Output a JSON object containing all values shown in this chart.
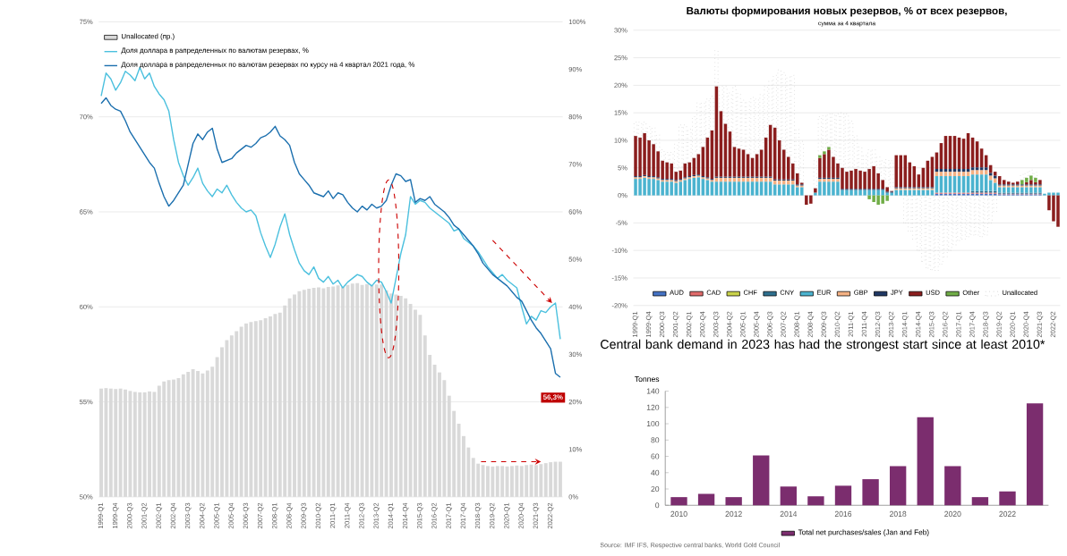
{
  "chart_data": [
    {
      "type": "bar",
      "categories": [
        "1999-Q1",
        null,
        null,
        "1999-Q4",
        null,
        null,
        "2000-Q3",
        null,
        null,
        "2001-Q2",
        null,
        null,
        "2002-Q1",
        null,
        null,
        "2002-Q4",
        null,
        null,
        "2003-Q3",
        null,
        null,
        "2004-Q2",
        null,
        null,
        "2005-Q1",
        null,
        null,
        "2005-Q4",
        null,
        null,
        "2006-Q3",
        null,
        null,
        "2007-Q2",
        null,
        null,
        "2008-Q1",
        null,
        null,
        "2008-Q4",
        null,
        null,
        "2009-Q3",
        null,
        null,
        "2010-Q2",
        null,
        null,
        "2011-Q1",
        null,
        null,
        "2011-Q4",
        null,
        null,
        "2012-Q3",
        null,
        null,
        "2013-Q2",
        null,
        null,
        "2014-Q1",
        null,
        null,
        "2014-Q4",
        null,
        null,
        "2015-Q3",
        null,
        null,
        "2016-Q2",
        null,
        null,
        "2017-Q1",
        null,
        null,
        "2017-Q4",
        null,
        null,
        "2018-Q3",
        null,
        null,
        "2019-Q2",
        null,
        null,
        "2020-Q1",
        null,
        null,
        "2020-Q4",
        null,
        null,
        "2021-Q3",
        null,
        null,
        "2022-Q2",
        null,
        null
      ],
      "series": [
        {
          "name": "Unallocated (пр.)",
          "color": "#d9d9d9",
          "axis": "y2",
          "values": [
            22.8,
            22.9,
            22.8,
            22.7,
            22.8,
            22.6,
            22.3,
            22.1,
            22.0,
            22.0,
            22.2,
            22.1,
            23.4,
            24.3,
            24.6,
            24.7,
            25.0,
            25.8,
            26.3,
            26.9,
            26.5,
            26.0,
            26.6,
            27.4,
            29.4,
            31.5,
            33.0,
            34.0,
            34.9,
            35.8,
            36.5,
            36.8,
            37.0,
            37.2,
            37.6,
            38.0,
            38.5,
            38.8,
            40.3,
            41.8,
            42.6,
            43.3,
            43.6,
            43.8,
            44.0,
            44.1,
            43.9,
            44.2,
            44.3,
            44.5,
            44.2,
            44.6,
            44.9,
            45.0,
            44.6,
            44.8,
            44.5,
            44.7,
            44.7,
            43.5,
            42.8,
            42.6,
            42.3,
            41.8,
            40.6,
            39.4,
            38.3,
            34.0,
            29.9,
            27.8,
            26.2,
            24.6,
            21.3,
            18.1,
            15.4,
            12.8,
            10.4,
            8.2,
            7.0,
            6.7,
            6.5,
            6.4,
            6.5,
            6.5,
            6.4,
            6.5,
            6.6,
            6.5,
            6.7,
            6.8,
            6.7,
            6.9,
            7.1,
            7.3,
            7.4,
            7.4
          ]
        },
        {
          "name": "Доля доллара в рапределенных по валютам резервах, %",
          "type": "line",
          "color": "#4bc0de",
          "values": [
            71.1,
            72.3,
            72.0,
            71.4,
            71.8,
            72.4,
            72.2,
            71.9,
            72.6,
            72.0,
            72.3,
            71.6,
            71.2,
            70.9,
            70.3,
            68.8,
            67.6,
            66.9,
            66.4,
            66.8,
            67.3,
            66.5,
            66.1,
            65.8,
            66.2,
            66.0,
            66.4,
            65.9,
            65.5,
            65.2,
            65.0,
            65.1,
            64.8,
            63.9,
            63.2,
            62.6,
            63.3,
            64.2,
            64.9,
            63.8,
            63.0,
            62.3,
            61.9,
            61.7,
            62.1,
            61.5,
            61.3,
            61.6,
            61.2,
            61.4,
            61.0,
            61.3,
            61.5,
            61.7,
            61.6,
            61.3,
            61.1,
            61.4,
            61.3,
            60.8,
            60.2,
            61.5,
            62.8,
            63.8,
            65.8,
            65.4,
            65.6,
            65.5,
            65.2,
            65.0,
            64.8,
            64.6,
            64.4,
            64.0,
            64.1,
            63.6,
            63.4,
            63.2,
            62.9,
            62.5,
            62.1,
            61.8,
            61.5,
            61.7,
            61.4,
            61.2,
            61.0,
            60.0,
            59.1,
            59.5,
            59.3,
            59.8,
            59.7,
            60.0,
            60.2,
            58.3
          ]
        },
        {
          "name": "Доля доллара в рапределенных по валютам резервах по курсу на 4 квартал 2021 года, %",
          "type": "line",
          "color": "#1b6fae",
          "values": [
            70.7,
            71.0,
            70.6,
            70.4,
            70.3,
            69.8,
            69.2,
            68.8,
            68.4,
            68.0,
            67.6,
            67.3,
            66.5,
            65.8,
            65.3,
            65.6,
            66.0,
            66.4,
            67.5,
            68.6,
            69.1,
            68.8,
            69.2,
            69.4,
            68.3,
            67.6,
            67.7,
            67.8,
            68.1,
            68.3,
            68.5,
            68.4,
            68.6,
            68.9,
            69.0,
            69.2,
            69.5,
            69.0,
            68.8,
            68.5,
            67.6,
            67.0,
            66.7,
            66.4,
            66.0,
            65.9,
            65.8,
            66.1,
            65.7,
            66.0,
            65.9,
            65.5,
            65.2,
            65.0,
            65.3,
            65.1,
            65.4,
            65.2,
            65.3,
            65.6,
            66.4,
            67.0,
            66.9,
            66.6,
            66.7,
            65.5,
            65.7,
            65.6,
            65.8,
            65.4,
            65.2,
            65.0,
            64.7,
            64.3,
            64.1,
            63.8,
            63.5,
            63.2,
            62.8,
            62.3,
            62.0,
            61.7,
            61.5,
            61.3,
            61.1,
            60.8,
            60.5,
            60.3,
            59.8,
            59.3,
            58.9,
            58.6,
            58.2,
            57.8,
            56.5,
            56.3
          ]
        }
      ],
      "ylim": [
        50,
        75
      ],
      "yticks": [
        {
          "value": 50,
          "label": "50%"
        },
        {
          "value": 55,
          "label": "55%"
        },
        {
          "value": 60,
          "label": "60%"
        },
        {
          "value": 65,
          "label": "65%"
        },
        {
          "value": 70,
          "label": "70%"
        },
        {
          "value": 75,
          "label": "75%"
        }
      ],
      "y2lim": [
        0,
        100
      ],
      "y2ticks": [
        {
          "value": 0,
          "label": "0%"
        },
        {
          "value": 10,
          "label": "10%"
        },
        {
          "value": 20,
          "label": "20%"
        },
        {
          "value": 30,
          "label": "30%"
        },
        {
          "value": 40,
          "label": "40%"
        },
        {
          "value": 50,
          "label": "50%"
        },
        {
          "value": 60,
          "label": "60%"
        },
        {
          "value": 70,
          "label": "70%"
        },
        {
          "value": 80,
          "label": "80%"
        },
        {
          "value": 90,
          "label": "90%"
        },
        {
          "value": 100,
          "label": "100%"
        }
      ],
      "grid": "y",
      "legend": "top left",
      "annotations": [
        {
          "text": "56,3%",
          "y": 56.3
        }
      ]
    },
    {
      "type": "bar",
      "stacked": true,
      "title": "Валюты формирования новых резервов, % от всех резервов,",
      "subtitle": "сумма за 4 квартала",
      "categories": [
        "1999-Q1",
        null,
        null,
        "1999-Q4",
        null,
        null,
        "2000-Q3",
        null,
        null,
        "2001-Q2",
        null,
        null,
        "2002-Q1",
        null,
        null,
        "2002-Q4",
        null,
        null,
        "2003-Q3",
        null,
        null,
        "2004-Q2",
        null,
        null,
        "2005-Q1",
        null,
        null,
        "2005-Q4",
        null,
        null,
        "2006-Q3",
        null,
        null,
        "2007-Q2",
        null,
        null,
        "2008-Q1",
        null,
        null,
        "2008-Q4",
        null,
        null,
        "2009-Q3",
        null,
        null,
        "2010-Q2",
        null,
        null,
        "2011-Q1",
        null,
        null,
        "2011-Q4",
        null,
        null,
        "2012-Q3",
        null,
        null,
        "2013-Q2",
        null,
        null,
        "2014-Q1",
        null,
        null,
        "2014-Q4",
        null,
        null,
        "2015-Q3",
        null,
        null,
        "2016-Q2",
        null,
        null,
        "2017-Q1",
        null,
        null,
        "2017-Q4",
        null,
        null,
        "2018-Q3",
        null,
        null,
        "2019-Q2",
        null,
        null,
        "2020-Q1",
        null,
        null,
        "2020-Q4",
        null,
        null,
        "2021-Q3",
        null,
        null,
        "2022-Q2",
        null
      ],
      "series": [
        {
          "name": "AUD",
          "color": "#4472c4",
          "values": [
            0,
            0,
            0,
            0,
            0,
            0,
            0,
            0,
            0,
            0,
            0,
            0,
            0,
            0,
            0,
            0,
            0,
            0,
            0,
            0,
            0,
            0,
            0,
            0,
            0,
            0,
            0,
            0,
            0,
            0,
            0,
            0,
            0,
            0,
            0,
            0,
            0,
            0,
            0,
            0,
            0,
            0,
            0,
            0,
            0,
            0,
            0,
            0,
            0,
            0,
            0,
            0,
            0,
            0,
            0,
            0,
            0,
            0,
            0,
            0,
            0,
            0,
            0,
            0,
            0,
            0,
            0,
            0.3,
            0.3,
            0.3,
            0.3,
            0.3,
            0.3,
            0.3,
            0.3,
            0.3,
            0.3,
            0.3,
            0.3,
            0.3,
            0.3,
            0.2,
            0.2,
            0.2,
            0.2,
            0.2,
            0.2,
            0.2,
            0.2,
            0.2,
            0.2,
            0,
            0,
            0,
            0
          ]
        },
        {
          "name": "CAD",
          "color": "#e06a6a",
          "values": [
            0,
            0,
            0,
            0,
            0,
            0,
            0,
            0,
            0,
            0,
            0,
            0,
            0,
            0,
            0,
            0,
            0,
            0,
            0,
            0,
            0,
            0,
            0,
            0,
            0,
            0,
            0,
            0,
            0,
            0,
            0,
            0,
            0,
            0,
            0,
            0,
            0,
            0,
            0,
            0,
            0,
            0,
            0,
            0,
            0,
            0,
            0,
            0,
            0,
            0,
            0,
            0,
            0,
            0,
            0,
            0,
            0,
            0,
            0,
            0,
            0,
            0,
            0,
            0,
            0,
            0,
            0,
            0.2,
            0.2,
            0.2,
            0.2,
            0.2,
            0.2,
            0.2,
            0.2,
            0.2,
            0.2,
            0.2,
            0.2,
            0.2,
            0.2,
            0.1,
            0.1,
            0.1,
            0.1,
            0.1,
            0.1,
            0.1,
            0.1,
            0.1,
            0.1,
            0,
            0,
            0,
            0
          ]
        },
        {
          "name": "CHF",
          "color": "#c9d24a",
          "values": [
            0,
            0,
            0,
            0,
            0,
            0,
            0,
            0,
            0,
            0,
            0,
            0,
            0,
            0,
            0,
            0,
            0,
            0,
            0,
            0,
            0,
            0,
            0,
            0,
            0,
            0,
            0,
            0,
            0,
            0,
            0,
            0,
            0,
            0,
            0,
            0,
            0,
            0,
            0,
            0,
            0,
            0,
            0,
            0,
            0,
            0,
            0,
            0,
            0,
            0,
            0,
            0,
            0,
            0,
            0,
            0,
            0,
            0,
            0,
            0,
            0,
            0,
            0,
            0,
            0,
            0,
            0,
            0,
            0,
            0,
            0,
            0,
            0,
            0,
            0,
            0,
            0,
            0,
            0,
            0,
            0,
            0,
            0,
            0,
            0,
            0,
            0,
            0,
            0,
            0,
            0,
            0,
            0,
            0,
            0
          ]
        },
        {
          "name": "CNY",
          "color": "#2e6f8e",
          "values": [
            0,
            0,
            0,
            0,
            0,
            0,
            0,
            0,
            0,
            0,
            0,
            0,
            0,
            0,
            0,
            0,
            0,
            0,
            0,
            0,
            0,
            0,
            0,
            0,
            0,
            0,
            0,
            0,
            0,
            0,
            0,
            0,
            0,
            0,
            0,
            0,
            0,
            0,
            0,
            0,
            0,
            0,
            0,
            0,
            0,
            0,
            0,
            0,
            0,
            0,
            0,
            0,
            0,
            0,
            0,
            0,
            0,
            0,
            0,
            0,
            0,
            0,
            0,
            0,
            0,
            0,
            0,
            0,
            0,
            0,
            0,
            0,
            0,
            0,
            0,
            0.3,
            0.3,
            0.3,
            0.3,
            0.3,
            0.3,
            0.2,
            0.2,
            0.2,
            0.2,
            0.2,
            0.2,
            0.2,
            0.2,
            0.2,
            0.2,
            0,
            0,
            0,
            0
          ]
        },
        {
          "name": "EUR",
          "color": "#4bb3cf",
          "values": [
            3,
            3,
            3.2,
            3,
            3,
            2.8,
            2.5,
            2.5,
            2.5,
            2.3,
            2.5,
            2.8,
            3,
            3.2,
            3.3,
            3,
            2.8,
            2.5,
            2.5,
            2.5,
            2.5,
            2.5,
            2.5,
            2.5,
            2.5,
            2.5,
            2.5,
            2.5,
            2.5,
            2.5,
            2.5,
            2,
            2,
            2,
            2,
            2,
            1.5,
            1.5,
            0,
            0,
            0.5,
            2.5,
            2.5,
            2.5,
            2.5,
            2.5,
            1,
            1,
            1,
            1,
            1,
            1,
            1,
            1,
            1,
            1,
            0.5,
            0.5,
            1,
            1,
            1,
            1,
            1,
            1,
            1,
            1,
            1,
            3,
            3,
            3,
            3,
            3,
            3,
            3,
            3,
            3,
            3,
            3,
            3,
            2,
            1.5,
            1,
            1,
            1,
            1,
            1,
            1,
            1,
            1,
            1,
            1,
            0.3,
            0.5,
            0.5,
            0.5
          ]
        },
        {
          "name": "GBP",
          "color": "#f4b183",
          "values": [
            0.3,
            0.3,
            0.3,
            0.3,
            0.3,
            0.3,
            0.3,
            0.3,
            0.3,
            0.3,
            0.3,
            0.3,
            0.3,
            0.3,
            0.3,
            0.3,
            0.3,
            0.3,
            0.7,
            0.7,
            0.7,
            0.7,
            0.7,
            0.7,
            0.7,
            0.7,
            0.7,
            0.7,
            0.7,
            0.7,
            0.7,
            0.7,
            0.7,
            0.7,
            0.7,
            0.7,
            0.3,
            0.3,
            0,
            0,
            0,
            0.5,
            0.5,
            0.5,
            0.5,
            0.5,
            0,
            0,
            0,
            0,
            0,
            0,
            0,
            0,
            0,
            0,
            0,
            0,
            0.3,
            0.3,
            0.3,
            0.3,
            0.3,
            0.3,
            0.3,
            0.3,
            0.3,
            0.8,
            0.8,
            0.8,
            0.8,
            0.8,
            0.8,
            0.8,
            0.8,
            0.8,
            0.8,
            0.8,
            0.8,
            0.8,
            0.8,
            0.3,
            0.3,
            0.3,
            0.3,
            0.3,
            0.3,
            0.3,
            0.3,
            0.3,
            0.3,
            0,
            0,
            0,
            0
          ]
        },
        {
          "name": "JPY",
          "color": "#1f3864",
          "values": [
            0.2,
            0.2,
            0.2,
            0.2,
            0.2,
            0.2,
            0.2,
            0.2,
            0.2,
            0.2,
            0.2,
            0.2,
            0.2,
            0.2,
            0.2,
            0.2,
            0.2,
            0.2,
            0.2,
            0.2,
            0.2,
            0.2,
            0.2,
            0.2,
            0.2,
            0.2,
            0.2,
            0.2,
            0.2,
            0.2,
            0.2,
            0.2,
            0.2,
            0.2,
            0.2,
            0.2,
            0.2,
            0.2,
            0,
            0,
            0,
            0.2,
            0.2,
            0.2,
            0.2,
            0.2,
            0.2,
            0.2,
            0.2,
            0.2,
            0.2,
            0.2,
            0.2,
            0.2,
            0.2,
            0.2,
            0.2,
            0.2,
            0.2,
            0.2,
            0.2,
            0.2,
            0.2,
            0.2,
            0.2,
            0.2,
            0.2,
            0.5,
            0.5,
            0.5,
            0.5,
            0.5,
            0.5,
            0.5,
            0.5,
            0.5,
            0.5,
            0.5,
            0.5,
            0.5,
            0.5,
            0.2,
            0.2,
            0.2,
            0.2,
            0.2,
            0.2,
            0.2,
            0.2,
            0.2,
            0.2,
            0,
            0,
            0,
            0
          ]
        },
        {
          "name": "USD",
          "color": "#8b1e1e",
          "values": [
            7.3,
            7,
            7.6,
            6.5,
            5.8,
            4.7,
            3.3,
            3,
            2.8,
            1.5,
            1.5,
            2.5,
            2.5,
            3.1,
            3.7,
            5.3,
            7.2,
            8.8,
            16.4,
            11.9,
            9.6,
            8.2,
            5.4,
            5.1,
            4.9,
            4.1,
            3.4,
            4.1,
            4.9,
            7.1,
            9.4,
            9.4,
            7.1,
            5.4,
            4.1,
            2.9,
            2.0,
            0.3,
            -1.7,
            -1.5,
            0.8,
            3.6,
            4.3,
            5.1,
            3.8,
            2.6,
            3.8,
            3.1,
            3.3,
            3.6,
            3.3,
            3.1,
            3.6,
            4.1,
            2.8,
            1.6,
            0.8,
            0.1,
            5.8,
            5.8,
            5.8,
            4.5,
            3.8,
            2.3,
            3.5,
            4.8,
            5.5,
            3.0,
            4.7,
            6.0,
            6.0,
            6.0,
            5.7,
            5.5,
            6.5,
            5.4,
            4.7,
            3.4,
            2.2,
            1.4,
            0.7,
            1.5,
            0.8,
            0.5,
            0.3,
            0.5,
            0,
            0.4,
            0.8,
            0.4,
            0.8,
            0,
            -2.7,
            -4.7,
            -5.7
          ]
        },
        {
          "name": "Other",
          "color": "#70ad47",
          "values": [
            0,
            0,
            0,
            0,
            0,
            0,
            0,
            0,
            0,
            0,
            0,
            0,
            0,
            0,
            0,
            0,
            0,
            0,
            0,
            0,
            0,
            0,
            0,
            0,
            0,
            0,
            0,
            0,
            0,
            0,
            0,
            0,
            0,
            0,
            0,
            0,
            0,
            0,
            0,
            0,
            0,
            0.5,
            0.5,
            0.5,
            0,
            0,
            0,
            0,
            0,
            0,
            0,
            0,
            -0.7,
            -1.2,
            -1.7,
            -1.5,
            -1.0,
            0,
            0,
            0,
            0,
            0,
            0,
            0,
            0,
            0,
            0,
            0,
            0,
            0,
            0,
            0,
            0,
            0,
            0,
            0,
            0,
            0,
            0,
            0,
            0,
            0,
            0,
            0,
            0,
            0,
            0.8,
            0.8,
            0.8,
            0.8,
            0,
            0,
            0,
            0,
            0
          ]
        },
        {
          "name": "Unallocated",
          "color": "#bfbfbf",
          "line_style": "dotted",
          "values": [
            2.5,
            2.8,
            2,
            2.5,
            3,
            3,
            2,
            1.8,
            2,
            5,
            8.3,
            7,
            6,
            7.5,
            9.3,
            8,
            7,
            6.2,
            6.5,
            4.5,
            6.8,
            7,
            11,
            10,
            9,
            9.5,
            11,
            10,
            10,
            9.3,
            8,
            9.5,
            12.8,
            14,
            14.5,
            16,
            8,
            7.5,
            0,
            0,
            5,
            7,
            6.5,
            6,
            7.8,
            9,
            10,
            10.5,
            9,
            6,
            4.3,
            3,
            3.5,
            3,
            3,
            3.5,
            5,
            5.5,
            0,
            0,
            -5,
            -6.5,
            -8,
            -10,
            -12,
            -13.2,
            -13.5,
            -13.7,
            -12.5,
            -11.2,
            -10,
            -9,
            -8.2,
            -8,
            -7.5,
            -7.2,
            -7.2,
            -7.5,
            -7.2,
            -5,
            -3,
            0,
            0,
            0,
            0,
            0,
            1,
            1,
            1,
            1,
            0,
            0,
            0,
            0,
            0
          ]
        }
      ],
      "ylim": [
        -20,
        30
      ],
      "yticks": [
        {
          "value": -20,
          "label": "-20%"
        },
        {
          "value": -15,
          "label": "-15%"
        },
        {
          "value": -10,
          "label": "-10%"
        },
        {
          "value": -5,
          "label": "-5%"
        },
        {
          "value": 0,
          "label": "0%"
        },
        {
          "value": 5,
          "label": "5%"
        },
        {
          "value": 10,
          "label": "10%"
        },
        {
          "value": 15,
          "label": "15%"
        },
        {
          "value": 20,
          "label": "20%"
        },
        {
          "value": 25,
          "label": "25%"
        },
        {
          "value": 30,
          "label": "30%"
        }
      ],
      "grid": "y",
      "legend": "bottom"
    },
    {
      "type": "bar",
      "title": "Central bank demand in 2023 has had the strongest start since at least 2010*",
      "ylabel": "Tonnes",
      "categories": [
        "2010",
        null,
        "2012",
        null,
        "2014",
        null,
        "2016",
        null,
        "2018",
        null,
        "2020",
        null,
        "2022",
        null
      ],
      "series": [
        {
          "name": "Total net purchases/sales (Jan and Feb)",
          "color": "#7b2d6e",
          "values": [
            10,
            14,
            10,
            61,
            23,
            11,
            24,
            32,
            48,
            108,
            48,
            10,
            17,
            125
          ]
        }
      ],
      "ylim": [
        0,
        140
      ],
      "yticks": [
        0,
        20,
        40,
        60,
        80,
        100,
        120,
        140
      ],
      "legend": "bottom",
      "annotations": [
        "Source: IMF IFS, Respective central banks, World Gold Council"
      ]
    }
  ]
}
